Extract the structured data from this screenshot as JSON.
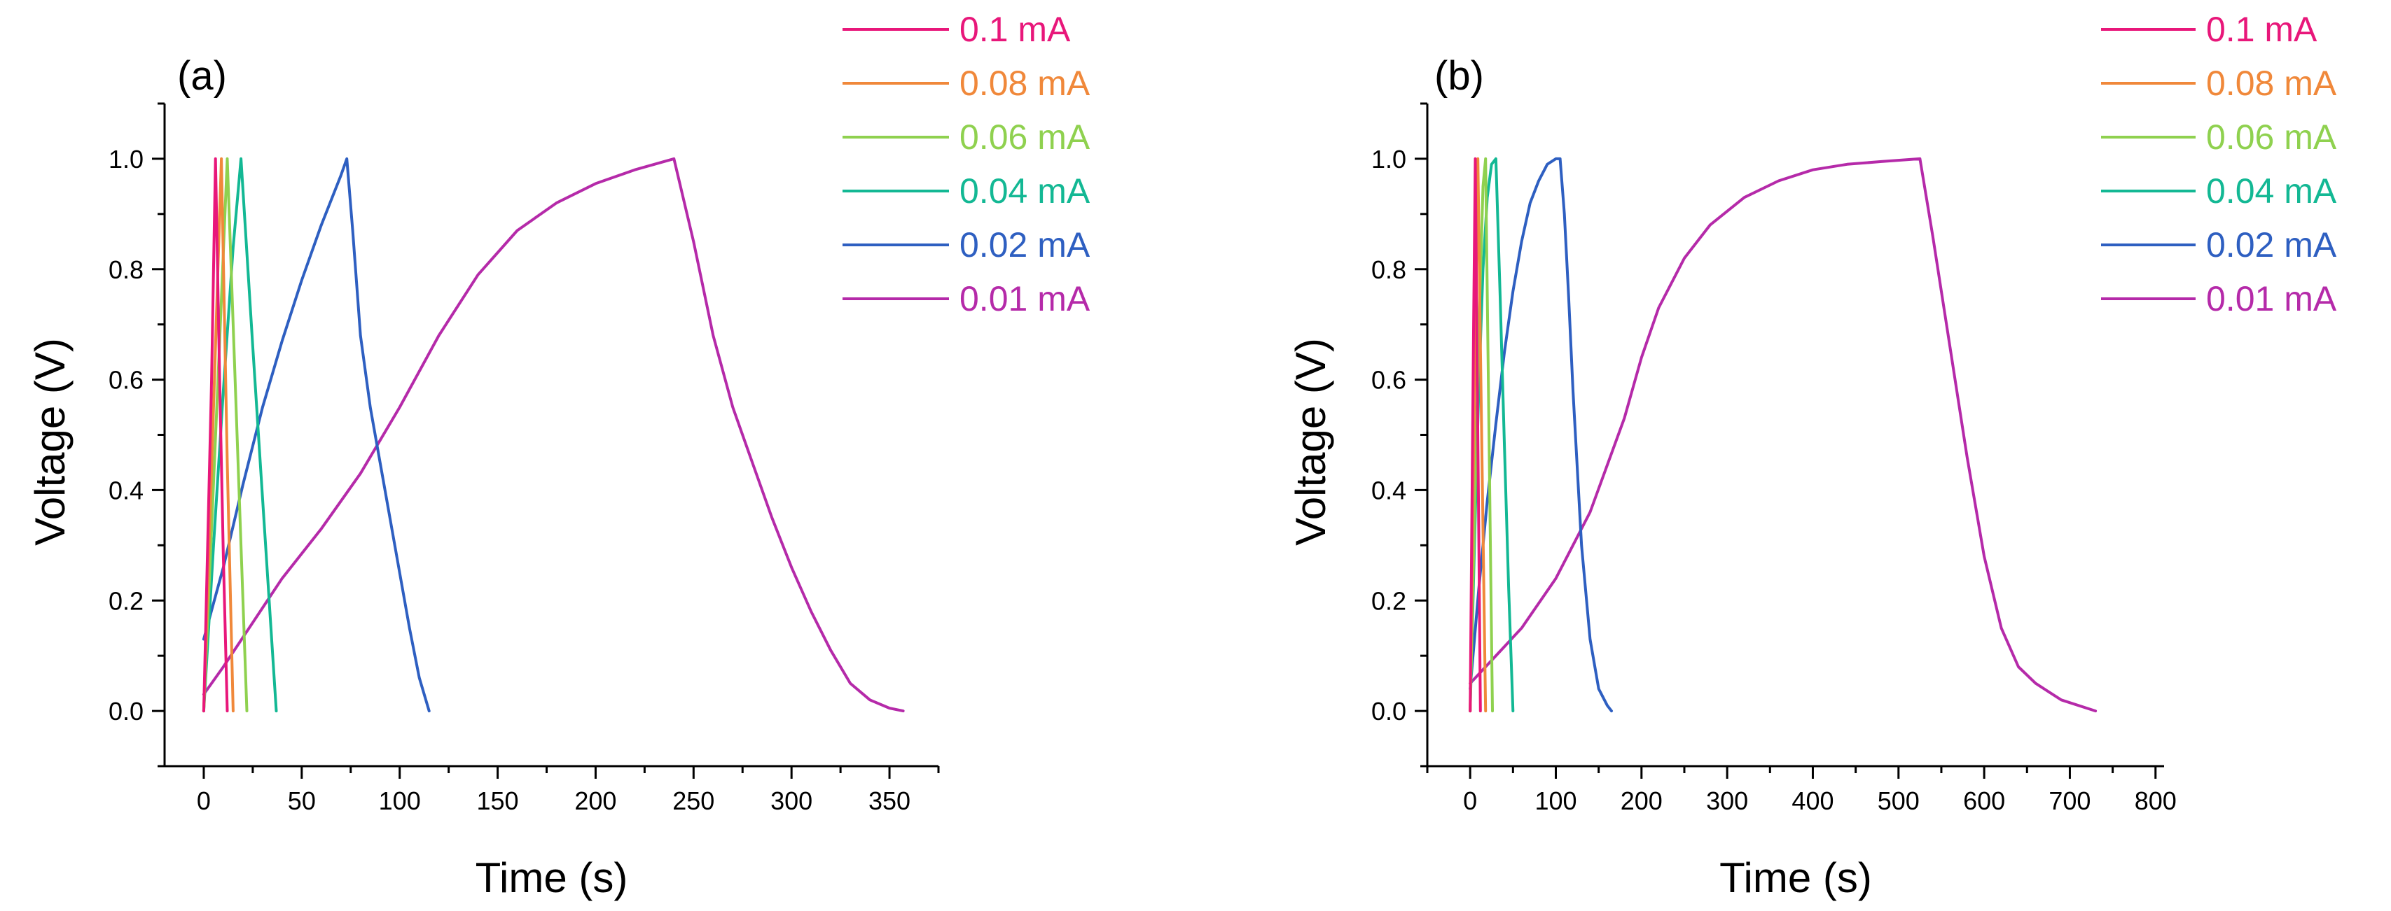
{
  "figure": {
    "background": "#ffffff"
  },
  "chart_data": [
    {
      "type": "line",
      "panel_label": "(a)",
      "xlabel": "Time (s)",
      "ylabel": "Voltage (V)",
      "xlim": [
        -20,
        375
      ],
      "ylim": [
        -0.1,
        1.1
      ],
      "xticks": [
        0,
        50,
        100,
        150,
        200,
        250,
        300,
        350
      ],
      "yticks": [
        0.0,
        0.2,
        0.4,
        0.6,
        0.8,
        1.0
      ],
      "ytick_labels": [
        "0.0",
        "0.2",
        "0.4",
        "0.6",
        "0.8",
        "1.0"
      ],
      "legend_position": "top-right, outside plot",
      "series": [
        {
          "name": "0.1 mA",
          "color": "#e8177a",
          "x": [
            0,
            2,
            4,
            6,
            8,
            10,
            12
          ],
          "y": [
            0.0,
            0.3,
            0.6,
            1.0,
            0.62,
            0.28,
            0.0
          ]
        },
        {
          "name": "0.08 mA",
          "color": "#f0883a",
          "x": [
            0,
            3,
            6,
            9,
            12,
            15
          ],
          "y": [
            0.0,
            0.33,
            0.66,
            1.0,
            0.45,
            0.0
          ]
        },
        {
          "name": "0.06 mA",
          "color": "#8fd14f",
          "x": [
            0,
            4,
            8,
            12,
            17,
            22
          ],
          "y": [
            0.0,
            0.33,
            0.66,
            1.0,
            0.5,
            0.0
          ]
        },
        {
          "name": "0.04 mA",
          "color": "#13b894",
          "x": [
            0,
            5,
            10,
            15,
            19,
            25,
            31,
            37
          ],
          "y": [
            0.0,
            0.3,
            0.58,
            0.84,
            1.0,
            0.66,
            0.33,
            0.0
          ]
        },
        {
          "name": "0.02 mA",
          "color": "#2e5fc1",
          "x": [
            0,
            10,
            20,
            30,
            40,
            50,
            60,
            70,
            73,
            76,
            80,
            85,
            90,
            95,
            100,
            105,
            110,
            115
          ],
          "y": [
            0.13,
            0.26,
            0.41,
            0.55,
            0.67,
            0.78,
            0.88,
            0.97,
            1.0,
            0.87,
            0.68,
            0.55,
            0.45,
            0.35,
            0.25,
            0.15,
            0.06,
            0.0
          ]
        },
        {
          "name": "0.01 mA",
          "color": "#b52aa9",
          "x": [
            0,
            10,
            25,
            40,
            60,
            80,
            100,
            120,
            140,
            160,
            180,
            200,
            220,
            240,
            250,
            260,
            270,
            280,
            290,
            300,
            310,
            320,
            330,
            340,
            350,
            357
          ],
          "y": [
            0.03,
            0.08,
            0.16,
            0.24,
            0.33,
            0.43,
            0.55,
            0.68,
            0.79,
            0.87,
            0.92,
            0.955,
            0.98,
            1.0,
            0.85,
            0.68,
            0.55,
            0.45,
            0.35,
            0.26,
            0.18,
            0.11,
            0.05,
            0.02,
            0.005,
            0.0
          ]
        }
      ]
    },
    {
      "type": "line",
      "panel_label": "(b)",
      "xlabel": "Time (s)",
      "ylabel": "Voltage (V)",
      "xlim": [
        -50,
        810
      ],
      "ylim": [
        -0.1,
        1.1
      ],
      "xticks": [
        0,
        100,
        200,
        300,
        400,
        500,
        600,
        700,
        800
      ],
      "yticks": [
        0.0,
        0.2,
        0.4,
        0.6,
        0.8,
        1.0
      ],
      "ytick_labels": [
        "0.0",
        "0.2",
        "0.4",
        "0.6",
        "0.8",
        "1.0"
      ],
      "legend_position": "top-right, outside plot",
      "series": [
        {
          "name": "0.1 mA",
          "color": "#e8177a",
          "x": [
            0,
            2,
            4,
            6,
            8,
            10,
            12
          ],
          "y": [
            0.0,
            0.35,
            0.7,
            1.0,
            0.66,
            0.33,
            0.0
          ]
        },
        {
          "name": "0.08 mA",
          "color": "#f0883a",
          "x": [
            0,
            3,
            6,
            9,
            12,
            15,
            18
          ],
          "y": [
            0.0,
            0.35,
            0.68,
            1.0,
            0.66,
            0.33,
            0.0
          ]
        },
        {
          "name": "0.06 mA",
          "color": "#8fd14f",
          "x": [
            0,
            5,
            10,
            15,
            18,
            22,
            26
          ],
          "y": [
            0.0,
            0.35,
            0.68,
            0.95,
            1.0,
            0.5,
            0.0
          ]
        },
        {
          "name": "0.04 mA",
          "color": "#13b894",
          "x": [
            0,
            5,
            10,
            15,
            20,
            25,
            30,
            35,
            40,
            45,
            50
          ],
          "y": [
            0.0,
            0.3,
            0.58,
            0.8,
            0.93,
            0.99,
            1.0,
            0.75,
            0.48,
            0.22,
            0.0
          ]
        },
        {
          "name": "0.02 mA",
          "color": "#2e5fc1",
          "x": [
            0,
            10,
            20,
            30,
            40,
            50,
            60,
            70,
            80,
            90,
            100,
            105,
            110,
            115,
            120,
            130,
            140,
            150,
            160,
            165
          ],
          "y": [
            0.04,
            0.22,
            0.38,
            0.52,
            0.65,
            0.76,
            0.85,
            0.92,
            0.96,
            0.99,
            1.0,
            1.0,
            0.9,
            0.75,
            0.58,
            0.3,
            0.13,
            0.04,
            0.01,
            0.0
          ]
        },
        {
          "name": "0.01 mA",
          "color": "#b52aa9",
          "x": [
            0,
            30,
            60,
            100,
            140,
            180,
            200,
            220,
            250,
            280,
            320,
            360,
            400,
            440,
            480,
            525,
            540,
            560,
            580,
            600,
            620,
            640,
            660,
            690,
            730
          ],
          "y": [
            0.05,
            0.1,
            0.15,
            0.24,
            0.36,
            0.53,
            0.64,
            0.73,
            0.82,
            0.88,
            0.93,
            0.96,
            0.98,
            0.99,
            0.995,
            1.0,
            0.86,
            0.66,
            0.46,
            0.28,
            0.15,
            0.08,
            0.05,
            0.02,
            0.0
          ]
        }
      ]
    }
  ]
}
